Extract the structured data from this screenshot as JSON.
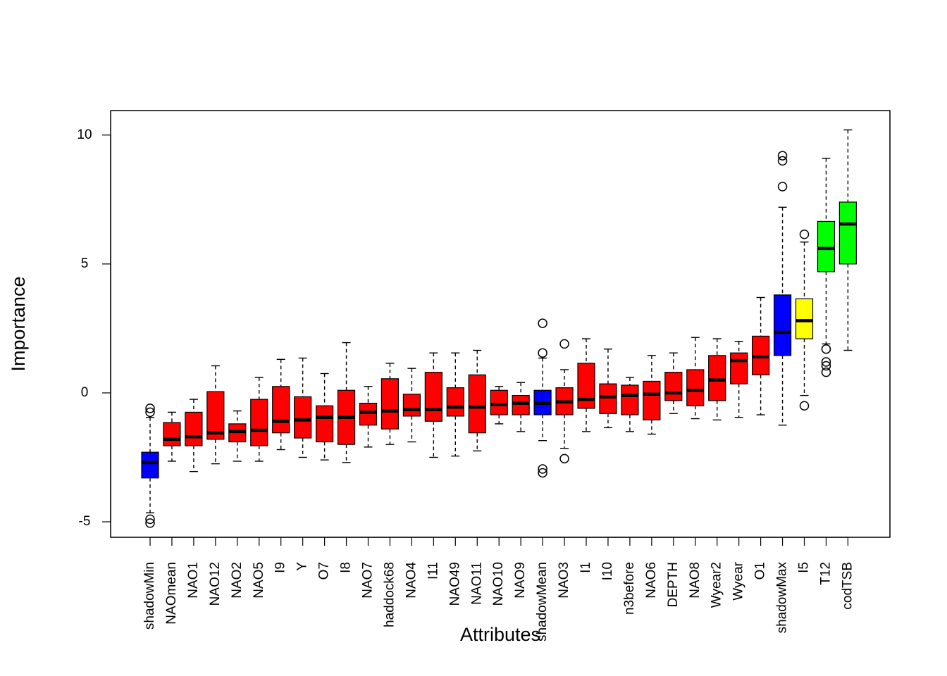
{
  "chart_data": {
    "type": "boxplot",
    "xlabel": "Attributes",
    "ylabel": "Importance",
    "ylim": [
      -5.6,
      10.95
    ],
    "y_ticks": [
      -5,
      0,
      5,
      10
    ],
    "colors": {
      "shadow": "#0000FF",
      "rejected": "#FF0000",
      "tentative": "#FFFF00",
      "confirmed": "#00FF00"
    },
    "boxes": [
      {
        "name": "shadowMin",
        "status": "shadow",
        "whisker_low": -4.65,
        "q1": -3.3,
        "median": -2.7,
        "q3": -2.3,
        "whisker_high": -0.95,
        "outliers": [
          -0.6,
          -0.75,
          -4.9,
          -5.05
        ]
      },
      {
        "name": "NAOmean",
        "status": "rejected",
        "whisker_low": -2.65,
        "q1": -2.05,
        "median": -1.8,
        "q3": -1.15,
        "whisker_high": -0.75,
        "outliers": []
      },
      {
        "name": "NAO1",
        "status": "rejected",
        "whisker_low": -3.05,
        "q1": -2.05,
        "median": -1.7,
        "q3": -0.75,
        "whisker_high": -0.25,
        "outliers": []
      },
      {
        "name": "NAO12",
        "status": "rejected",
        "whisker_low": -2.75,
        "q1": -1.8,
        "median": -1.55,
        "q3": 0.05,
        "whisker_high": 1.05,
        "outliers": []
      },
      {
        "name": "NAO2",
        "status": "rejected",
        "whisker_low": -2.65,
        "q1": -1.9,
        "median": -1.5,
        "q3": -1.2,
        "whisker_high": -0.7,
        "outliers": []
      },
      {
        "name": "NAO5",
        "status": "rejected",
        "whisker_low": -2.65,
        "q1": -2.05,
        "median": -1.45,
        "q3": -0.25,
        "whisker_high": 0.6,
        "outliers": []
      },
      {
        "name": "I9",
        "status": "rejected",
        "whisker_low": -2.2,
        "q1": -1.55,
        "median": -1.1,
        "q3": 0.25,
        "whisker_high": 1.3,
        "outliers": []
      },
      {
        "name": "Y",
        "status": "rejected",
        "whisker_low": -2.5,
        "q1": -1.75,
        "median": -1.05,
        "q3": -0.15,
        "whisker_high": 1.35,
        "outliers": []
      },
      {
        "name": "O7",
        "status": "rejected",
        "whisker_low": -2.6,
        "q1": -1.9,
        "median": -0.95,
        "q3": -0.5,
        "whisker_high": 0.75,
        "outliers": []
      },
      {
        "name": "I8",
        "status": "rejected",
        "whisker_low": -2.7,
        "q1": -2.0,
        "median": -0.95,
        "q3": 0.1,
        "whisker_high": 1.95,
        "outliers": []
      },
      {
        "name": "NAO7",
        "status": "rejected",
        "whisker_low": -2.1,
        "q1": -1.25,
        "median": -0.75,
        "q3": -0.4,
        "whisker_high": 0.25,
        "outliers": []
      },
      {
        "name": "haddock68",
        "status": "rejected",
        "whisker_low": -2.0,
        "q1": -1.4,
        "median": -0.7,
        "q3": 0.55,
        "whisker_high": 1.15,
        "outliers": []
      },
      {
        "name": "NAO4",
        "status": "rejected",
        "whisker_low": -1.9,
        "q1": -0.9,
        "median": -0.65,
        "q3": -0.05,
        "whisker_high": 0.95,
        "outliers": []
      },
      {
        "name": "I11",
        "status": "rejected",
        "whisker_low": -2.5,
        "q1": -1.1,
        "median": -0.65,
        "q3": 0.8,
        "whisker_high": 1.55,
        "outliers": []
      },
      {
        "name": "NAO49",
        "status": "rejected",
        "whisker_low": -2.45,
        "q1": -0.9,
        "median": -0.55,
        "q3": 0.2,
        "whisker_high": 1.55,
        "outliers": []
      },
      {
        "name": "NAO11",
        "status": "rejected",
        "whisker_low": -2.25,
        "q1": -1.55,
        "median": -0.55,
        "q3": 0.7,
        "whisker_high": 1.65,
        "outliers": []
      },
      {
        "name": "NAO10",
        "status": "rejected",
        "whisker_low": -1.2,
        "q1": -0.85,
        "median": -0.45,
        "q3": 0.1,
        "whisker_high": 0.25,
        "outliers": []
      },
      {
        "name": "NAO9",
        "status": "rejected",
        "whisker_low": -1.5,
        "q1": -0.85,
        "median": -0.4,
        "q3": -0.1,
        "whisker_high": 0.4,
        "outliers": []
      },
      {
        "name": "shadowMean",
        "status": "shadow",
        "whisker_low": -1.85,
        "q1": -0.85,
        "median": -0.4,
        "q3": 0.1,
        "whisker_high": 1.35,
        "outliers": [
          1.55,
          2.7,
          -2.95,
          -3.1
        ]
      },
      {
        "name": "NAO3",
        "status": "rejected",
        "whisker_low": -2.15,
        "q1": -0.85,
        "median": -0.35,
        "q3": 0.2,
        "whisker_high": 0.9,
        "outliers": [
          1.9,
          -2.55
        ]
      },
      {
        "name": "I1",
        "status": "rejected",
        "whisker_low": -1.5,
        "q1": -0.6,
        "median": -0.25,
        "q3": 1.15,
        "whisker_high": 2.1,
        "outliers": []
      },
      {
        "name": "I10",
        "status": "rejected",
        "whisker_low": -1.35,
        "q1": -0.8,
        "median": -0.15,
        "q3": 0.35,
        "whisker_high": 1.7,
        "outliers": []
      },
      {
        "name": "n3before",
        "status": "rejected",
        "whisker_low": -1.5,
        "q1": -0.85,
        "median": -0.1,
        "q3": 0.3,
        "whisker_high": 0.6,
        "outliers": []
      },
      {
        "name": "NAO6",
        "status": "rejected",
        "whisker_low": -1.6,
        "q1": -1.05,
        "median": -0.05,
        "q3": 0.45,
        "whisker_high": 1.45,
        "outliers": []
      },
      {
        "name": "DEPTH",
        "status": "rejected",
        "whisker_low": -0.8,
        "q1": -0.3,
        "median": 0.0,
        "q3": 0.8,
        "whisker_high": 1.55,
        "outliers": []
      },
      {
        "name": "NAO8",
        "status": "rejected",
        "whisker_low": -1.0,
        "q1": -0.5,
        "median": 0.1,
        "q3": 0.9,
        "whisker_high": 2.15,
        "outliers": []
      },
      {
        "name": "Wyear2",
        "status": "rejected",
        "whisker_low": -1.05,
        "q1": -0.3,
        "median": 0.5,
        "q3": 1.45,
        "whisker_high": 2.1,
        "outliers": []
      },
      {
        "name": "Wyear",
        "status": "rejected",
        "whisker_low": -0.95,
        "q1": 0.35,
        "median": 1.25,
        "q3": 1.55,
        "whisker_high": 2.0,
        "outliers": []
      },
      {
        "name": "O1",
        "status": "rejected",
        "whisker_low": -0.85,
        "q1": 0.7,
        "median": 1.4,
        "q3": 2.2,
        "whisker_high": 3.7,
        "outliers": []
      },
      {
        "name": "shadowMax",
        "status": "shadow",
        "whisker_low": -1.25,
        "q1": 1.45,
        "median": 2.35,
        "q3": 3.8,
        "whisker_high": 7.2,
        "outliers": [
          8.0,
          9.0,
          9.2
        ]
      },
      {
        "name": "I5",
        "status": "tentative",
        "whisker_low": -0.1,
        "q1": 2.1,
        "median": 2.8,
        "q3": 3.65,
        "whisker_high": 5.85,
        "outliers": [
          6.15,
          -0.5
        ]
      },
      {
        "name": "T12",
        "status": "confirmed",
        "whisker_low": 1.9,
        "q1": 4.7,
        "median": 5.6,
        "q3": 6.65,
        "whisker_high": 9.1,
        "outliers": [
          1.7,
          1.2,
          1.05,
          0.8
        ]
      },
      {
        "name": "codTSB",
        "status": "confirmed",
        "whisker_low": 1.65,
        "q1": 5.0,
        "median": 6.55,
        "q3": 7.4,
        "whisker_high": 10.2,
        "outliers": []
      }
    ]
  }
}
